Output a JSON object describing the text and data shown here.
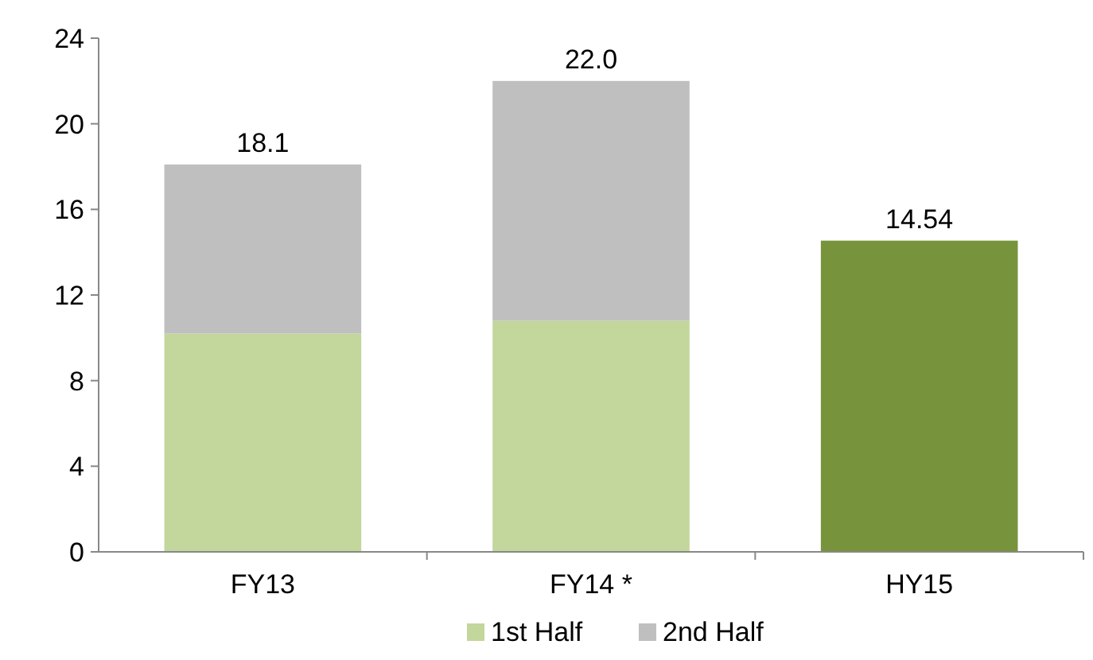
{
  "chart_data": {
    "type": "bar",
    "stacked": true,
    "categories": [
      "FY13",
      "FY14 *",
      "HY15"
    ],
    "series": [
      {
        "name": "1st Half",
        "color": "#c3d69b",
        "colors": [
          "#c3d69b",
          "#c3d69b",
          "#77933c"
        ],
        "values": [
          10.2,
          10.8,
          14.54
        ]
      },
      {
        "name": "2nd Half",
        "color": "#bfbfbf",
        "values": [
          7.9,
          11.2,
          null
        ]
      }
    ],
    "totals": [
      "18.1",
      "22.0",
      "14.54"
    ],
    "ylim": [
      0,
      24
    ],
    "yticks": [
      0,
      4,
      8,
      12,
      16,
      20,
      24
    ],
    "grid": false,
    "legend": "bottom"
  }
}
